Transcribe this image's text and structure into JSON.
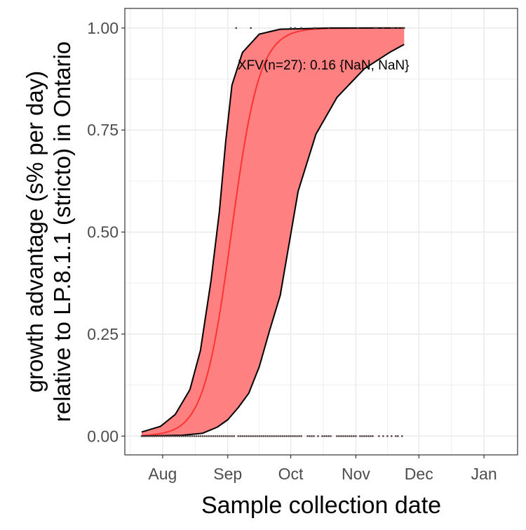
{
  "chart_data": {
    "type": "line",
    "title": "",
    "xlabel": "Sample collection date",
    "ylabel_lines": [
      "growth advantage (s% per day)",
      "relative to LP.8.1.1 (stricto) in Ontario"
    ],
    "x_unit": "days since Aug 1",
    "x_ticks": [
      {
        "label": "Aug",
        "day": 0
      },
      {
        "label": "Sep",
        "day": 31
      },
      {
        "label": "Oct",
        "day": 61
      },
      {
        "label": "Nov",
        "day": 92
      },
      {
        "label": "Dec",
        "day": 122
      },
      {
        "label": "Jan",
        "day": 153
      }
    ],
    "xlim": [
      -18,
      169
    ],
    "ylim": [
      -0.046,
      1.048
    ],
    "y_ticks": [
      {
        "label": "0.00",
        "value": 0
      },
      {
        "label": "0.25",
        "value": 0.25
      },
      {
        "label": "0.50",
        "value": 0.5
      },
      {
        "label": "0.75",
        "value": 0.75
      },
      {
        "label": "1.00",
        "value": 1
      }
    ],
    "grid": true,
    "annotation": "XFV(n=27): 0.16 {NaN, NaN}",
    "colors": {
      "ribbon": "#ff8080",
      "fit": "#ff3333",
      "bounds": "#000000",
      "points": "#4a3a3a",
      "grid": "#ebebeb"
    },
    "fit": {
      "name": "XFV",
      "midpoint_day": 32.8,
      "rate_per_day": 0.15,
      "day_range": [
        -10,
        115
      ]
    },
    "upper_bound": [
      [
        -10,
        0.01
      ],
      [
        -1,
        0.024
      ],
      [
        6,
        0.053
      ],
      [
        13,
        0.114
      ],
      [
        18,
        0.21
      ],
      [
        23,
        0.38
      ],
      [
        27,
        0.55
      ],
      [
        30,
        0.72
      ],
      [
        33,
        0.86
      ],
      [
        38,
        0.94
      ],
      [
        46,
        0.985
      ],
      [
        56,
        0.997
      ],
      [
        80,
        1.0
      ],
      [
        115,
        1.0
      ]
    ],
    "lower_bound": [
      [
        -10,
        0.0
      ],
      [
        9,
        0.002
      ],
      [
        19,
        0.007
      ],
      [
        26,
        0.022
      ],
      [
        31,
        0.04
      ],
      [
        36,
        0.07
      ],
      [
        41,
        0.105
      ],
      [
        46,
        0.17
      ],
      [
        51,
        0.26
      ],
      [
        56,
        0.345
      ],
      [
        59.5,
        0.45
      ],
      [
        64.5,
        0.6
      ],
      [
        73,
        0.74
      ],
      [
        83,
        0.83
      ],
      [
        96,
        0.9
      ],
      [
        108,
        0.94
      ],
      [
        115,
        0.96
      ]
    ],
    "points_at_0_day_ranges": [
      [
        -10,
        34
      ],
      [
        36,
        41
      ],
      [
        42,
        60
      ],
      [
        61,
        66
      ],
      [
        69,
        72
      ],
      [
        74,
        74
      ],
      [
        76,
        80
      ],
      [
        83,
        92
      ],
      [
        94,
        100
      ],
      [
        103,
        103
      ],
      [
        105,
        105
      ],
      [
        107,
        107
      ],
      [
        109,
        109
      ],
      [
        111,
        112
      ],
      [
        114,
        114
      ]
    ],
    "points_at_1_days": [
      35,
      42,
      61,
      63,
      66,
      72,
      73,
      79,
      93,
      101,
      102,
      105,
      109,
      110,
      112,
      114,
      115
    ]
  }
}
